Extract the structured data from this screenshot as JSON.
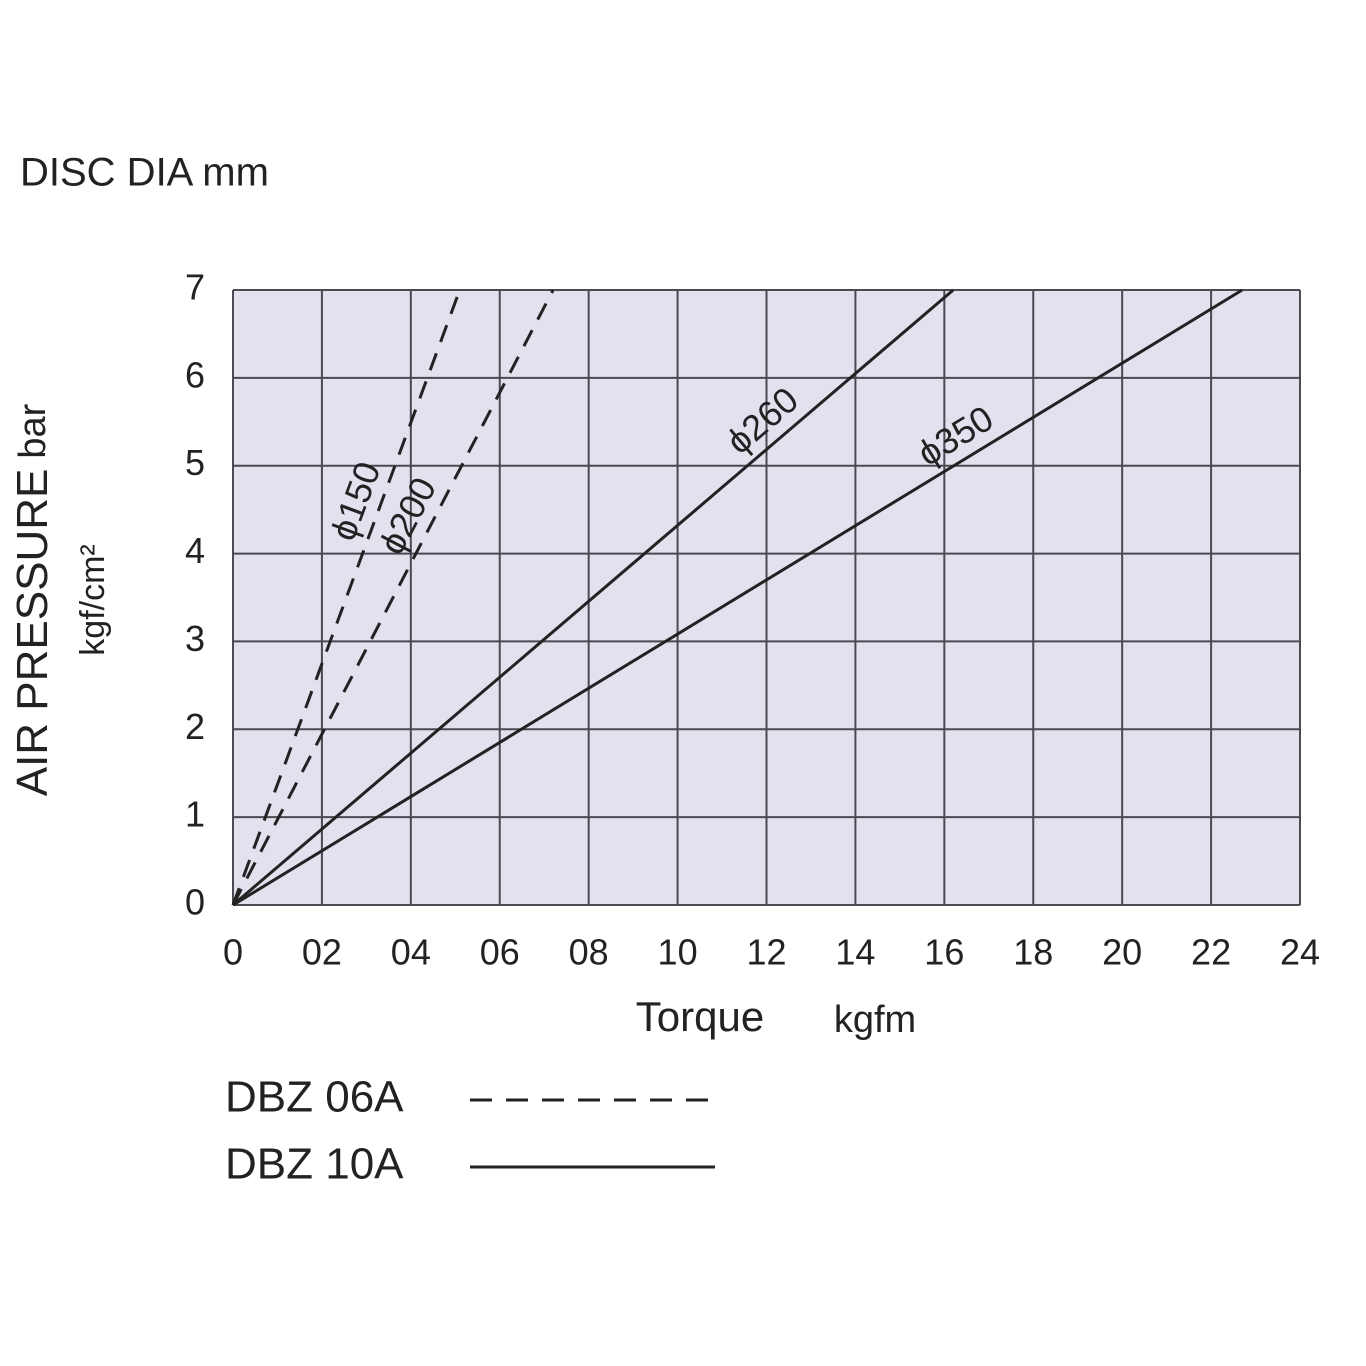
{
  "chart_data": {
    "type": "line",
    "title": "DISC DIA mm",
    "x_label": "Torque",
    "x_unit": "kgfm",
    "y_label": "AIR PRESSURE",
    "y_unit": "bar",
    "y_unit2": "kgf/cm²",
    "xlim": [
      0,
      24
    ],
    "xticks": [
      0,
      {
        "value": 2,
        "label": "02"
      },
      {
        "value": 4,
        "label": "04"
      },
      {
        "value": 6,
        "label": "06"
      },
      {
        "value": 8,
        "label": "08"
      },
      10,
      12,
      14,
      16,
      18,
      20,
      22,
      24
    ],
    "ylim": [
      0,
      7
    ],
    "yticks": [
      0,
      1,
      2,
      3,
      4,
      5,
      6,
      7
    ],
    "grid": true,
    "background": "#e4e0ee",
    "series": [
      {
        "name": "ϕ150",
        "color": "#222222",
        "style": "dashed",
        "x": [
          0,
          5.1
        ],
        "values": [
          0,
          7
        ]
      },
      {
        "name": "ϕ200",
        "color": "#222222",
        "style": "dashed",
        "x": [
          0,
          7.2
        ],
        "values": [
          0,
          7
        ]
      },
      {
        "name": "ϕ260",
        "color": "#222222",
        "style": "solid",
        "x": [
          0,
          16.2
        ],
        "values": [
          0,
          7
        ]
      },
      {
        "name": "ϕ350",
        "color": "#222222",
        "style": "solid",
        "x": [
          0,
          22.7
        ],
        "values": [
          0,
          7
        ]
      }
    ],
    "legend": [
      {
        "label": "DBZ 06A",
        "style": "dashed"
      },
      {
        "label": "DBZ 10A",
        "style": "solid"
      }
    ]
  }
}
